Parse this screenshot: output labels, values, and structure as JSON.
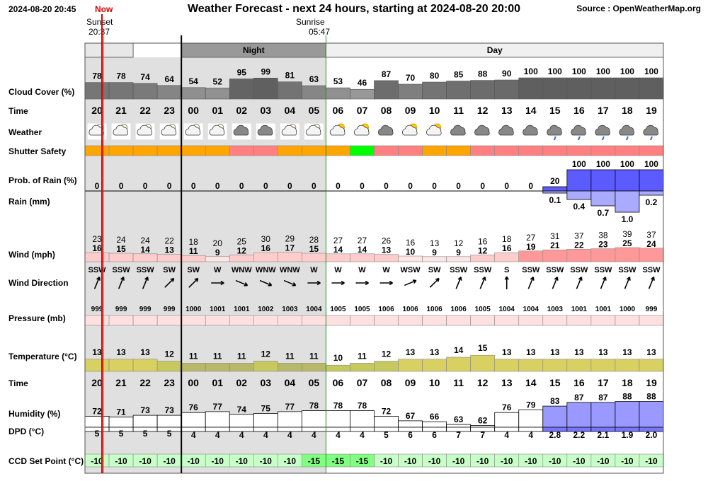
{
  "header": {
    "datetime": "2024-08-20 20:45",
    "now_label": "Now",
    "title": "Weather Forecast - next 24 hours, starting at 2024-08-20 20:00",
    "source": "Source : OpenWeatherMap.org",
    "sunset_label": "Sunset",
    "sunset_time": "20:37",
    "sunrise_label": "Sunrise",
    "sunrise_time": "05:47",
    "night_label": "Night",
    "day_label": "Day"
  },
  "colors": {
    "safe": "#00ff00",
    "caution": "#ffa500",
    "unsafe": "#ff8080",
    "night_shade": "#e0e0e0",
    "now_line": "#e00000",
    "rain_fill": "#7777ff",
    "rain_prob_fill": "#5b5bff"
  },
  "chart_data": {
    "type": "table",
    "hours": [
      "20",
      "21",
      "22",
      "23",
      "00",
      "01",
      "02",
      "03",
      "04",
      "05",
      "06",
      "07",
      "08",
      "09",
      "10",
      "11",
      "12",
      "13",
      "14",
      "15",
      "16",
      "17",
      "18",
      "19"
    ],
    "rows": {
      "cloud_cover": {
        "label": "Cloud Cover (%)",
        "values": [
          78,
          78,
          74,
          64,
          54,
          52,
          95,
          99,
          81,
          63,
          53,
          46,
          87,
          70,
          80,
          85,
          88,
          90,
          100,
          100,
          100,
          100,
          100,
          100
        ]
      },
      "time_top": {
        "label": "Time"
      },
      "weather": {
        "label": "Weather",
        "icons": [
          "partly-cloudy-night-icon",
          "partly-cloudy-night-icon",
          "partly-cloudy-night-icon",
          "partly-cloudy-night-icon",
          "partly-cloudy-night-icon",
          "partly-cloudy-night-icon",
          "cloud-icon",
          "cloud-icon",
          "partly-cloudy-night-icon",
          "partly-cloudy-night-icon",
          "partly-cloudy-day-icon",
          "partly-cloudy-day-icon",
          "cloud-icon",
          "partly-cloudy-day-icon",
          "partly-cloudy-day-icon",
          "cloud-icon",
          "cloud-icon",
          "cloud-icon",
          "cloud-icon",
          "rain-cloud-icon",
          "rain-cloud-icon",
          "rain-cloud-icon",
          "rain-cloud-icon",
          "rain-cloud-icon"
        ]
      },
      "shutter_safety": {
        "label": "Shutter Safety",
        "states": [
          "caution",
          "caution",
          "caution",
          "caution",
          "caution",
          "caution",
          "unsafe",
          "unsafe",
          "caution",
          "caution",
          "caution",
          "safe",
          "unsafe",
          "unsafe",
          "caution",
          "caution",
          "unsafe",
          "unsafe",
          "unsafe",
          "unsafe",
          "unsafe",
          "unsafe",
          "unsafe",
          "unsafe"
        ]
      },
      "rain_prob": {
        "label": "Prob. of Rain (%)",
        "values": [
          0,
          0,
          0,
          0,
          0,
          0,
          0,
          0,
          0,
          0,
          0,
          0,
          0,
          0,
          0,
          0,
          0,
          0,
          0,
          20,
          100,
          100,
          100,
          100
        ]
      },
      "rain_mm": {
        "label": "Rain (mm)",
        "values": [
          null,
          null,
          null,
          null,
          null,
          null,
          null,
          null,
          null,
          null,
          null,
          null,
          null,
          null,
          null,
          null,
          null,
          null,
          null,
          0.1,
          0.4,
          0.7,
          1.0,
          0.2
        ]
      },
      "wind": {
        "label": "Wind (mph)",
        "gust": [
          23,
          24,
          24,
          22,
          18,
          20,
          25,
          30,
          29,
          28,
          27,
          27,
          26,
          16,
          13,
          12,
          16,
          18,
          27,
          31,
          37,
          38,
          39,
          37
        ],
        "speed": [
          16,
          15,
          14,
          13,
          11,
          9,
          12,
          16,
          17,
          15,
          14,
          14,
          13,
          10,
          9,
          9,
          12,
          16,
          19,
          21,
          22,
          23,
          25,
          24
        ]
      },
      "wind_direction": {
        "label": "Wind Direction",
        "values": [
          "SSW",
          "SSW",
          "SSW",
          "SW",
          "SW",
          "W",
          "WNW",
          "WNW",
          "WNW",
          "W",
          "W",
          "W",
          "W",
          "WSW",
          "SW",
          "SSW",
          "SSW",
          "S",
          "SSW",
          "SSW",
          "SSW",
          "SSW",
          "SSW",
          "SSW"
        ]
      },
      "pressure": {
        "label": "Pressure (mb)",
        "values": [
          999,
          999,
          999,
          999,
          1000,
          1001,
          1001,
          1002,
          1003,
          1004,
          1005,
          1005,
          1006,
          1006,
          1006,
          1006,
          1005,
          1004,
          1004,
          1003,
          1001,
          1001,
          1000,
          999
        ]
      },
      "temperature": {
        "label": "Temperature (°C)",
        "values": [
          13,
          13,
          13,
          12,
          11,
          11,
          11,
          12,
          11,
          11,
          10,
          11,
          12,
          13,
          13,
          14,
          15,
          13,
          13,
          13,
          13,
          13,
          13,
          13
        ]
      },
      "time_bottom": {
        "label": "Time"
      },
      "humidity": {
        "label": "Humidity (%)",
        "values": [
          72,
          71,
          73,
          73,
          76,
          77,
          74,
          75,
          77,
          78,
          78,
          78,
          72,
          67,
          66,
          63,
          62,
          76,
          79,
          83,
          87,
          87,
          88,
          88
        ]
      },
      "dpd": {
        "label": "DPD (°C)",
        "values": [
          "5",
          "5",
          "5",
          "5",
          "4",
          "4",
          "4",
          "4",
          "4",
          "4",
          "4",
          "4",
          "5",
          "6",
          "6",
          "7",
          "7",
          "4",
          "4",
          "2.8",
          "2.2",
          "2.1",
          "1.9",
          "2.0"
        ]
      },
      "ccd_set_point": {
        "label": "CCD Set Point (°C)",
        "values": [
          -10,
          -10,
          -10,
          -10,
          -10,
          -10,
          -10,
          -10,
          -10,
          -15,
          -15,
          -15,
          -10,
          -10,
          -10,
          -10,
          -10,
          -10,
          -10,
          -10,
          -10,
          -10,
          -10,
          -10
        ]
      }
    }
  }
}
